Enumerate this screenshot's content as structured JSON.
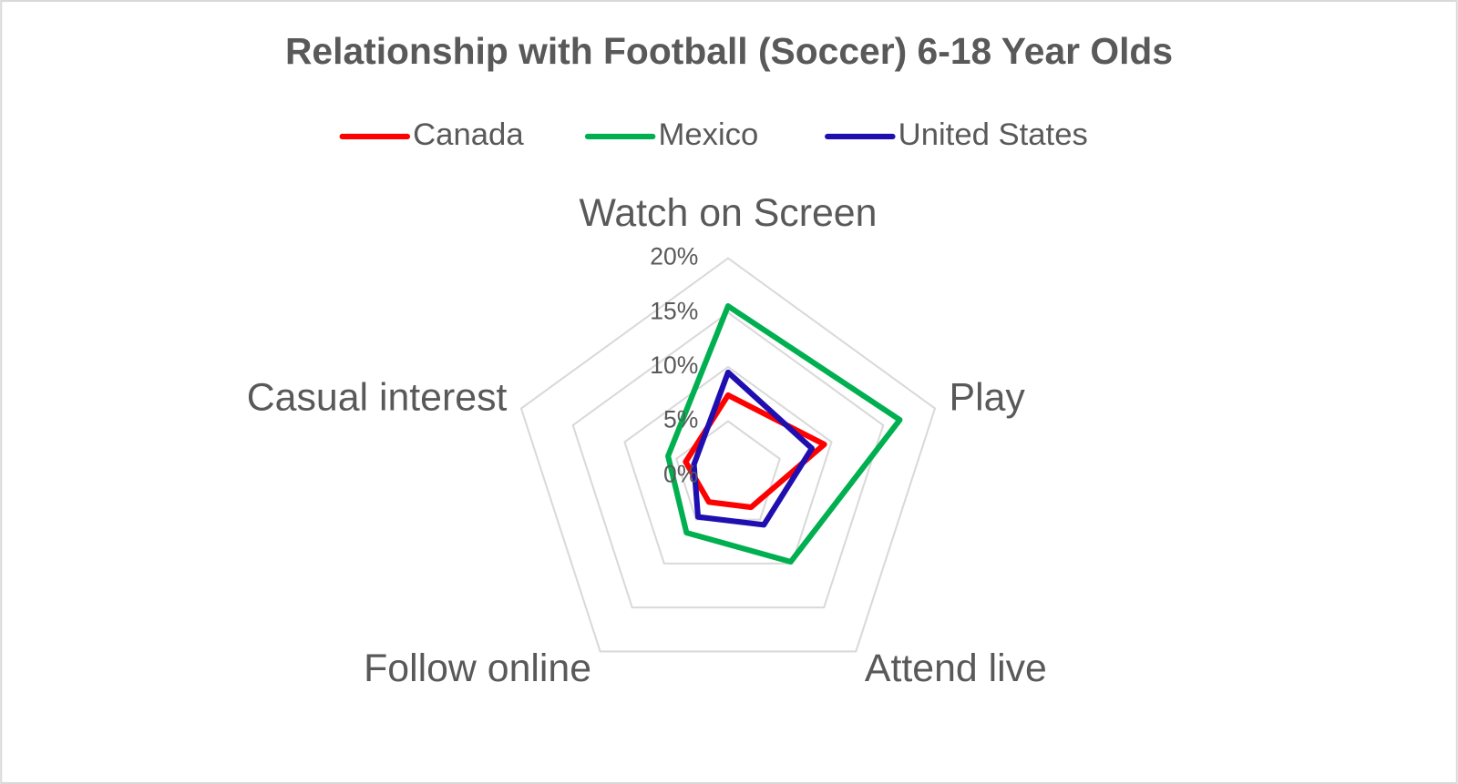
{
  "chart_data": {
    "type": "radar",
    "title": "Relationship with Football (Soccer) 6-18 Year Olds",
    "categories": [
      "Watch on Screen",
      "Play",
      "Attend live",
      "Follow online",
      "Casual interest"
    ],
    "series": [
      {
        "name": "Canada",
        "color": "#ff0000",
        "values": [
          7.4,
          9.3,
          3.6,
          3.0,
          4.1
        ]
      },
      {
        "name": "Mexico",
        "color": "#00b050",
        "values": [
          15.6,
          16.6,
          9.8,
          6.5,
          5.8
        ]
      },
      {
        "name": "United States",
        "color": "#1f0fb0",
        "values": [
          9.5,
          8.1,
          5.6,
          4.7,
          3.3
        ]
      }
    ],
    "ylim": [
      0,
      20
    ],
    "yticks": [
      {
        "value": 0,
        "label": "0%"
      },
      {
        "value": 5,
        "label": "5%"
      },
      {
        "value": 10,
        "label": "10%"
      },
      {
        "value": 15,
        "label": "15%"
      },
      {
        "value": 20,
        "label": "20%"
      }
    ],
    "grid": true,
    "legend": "top"
  }
}
